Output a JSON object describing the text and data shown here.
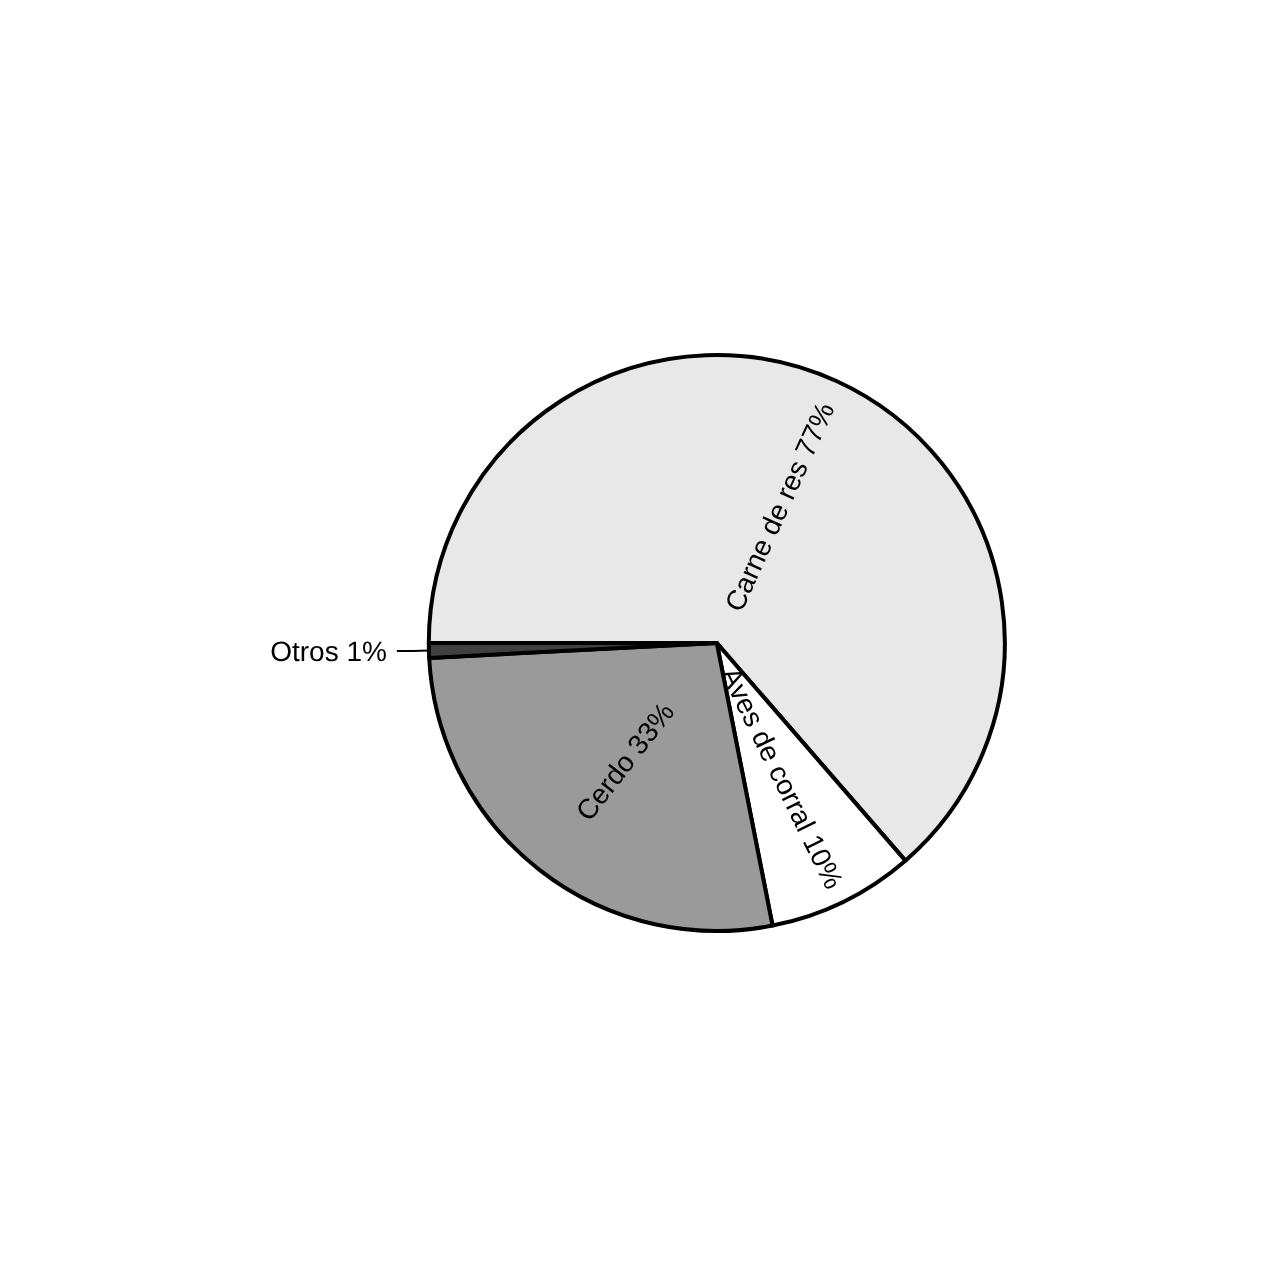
{
  "chart_data": {
    "type": "pie",
    "categories": [
      "Carne de res",
      "Aves de corral",
      "Cerdo",
      "Otros"
    ],
    "values": [
      77,
      10,
      33,
      1
    ],
    "value_labels": [
      "77%",
      "10%",
      "33%",
      "1%"
    ],
    "colors": [
      "#e8e8e8",
      "#ffffff",
      "#9a9a9a",
      "#404040"
    ],
    "legend": false
  }
}
